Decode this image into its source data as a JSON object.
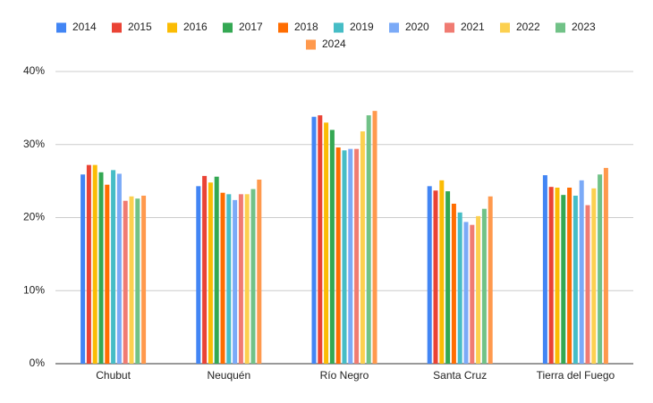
{
  "chart_data": {
    "type": "bar",
    "categories": [
      "Chubut",
      "Neuquén",
      "Río Negro",
      "Santa Cruz",
      "Tierra del Fuego"
    ],
    "series": [
      {
        "name": "2014",
        "color": "#4285f4",
        "values": [
          25.9,
          24.3,
          33.8,
          24.3,
          25.8
        ]
      },
      {
        "name": "2015",
        "color": "#ea4335",
        "values": [
          27.2,
          25.7,
          34.0,
          23.7,
          24.2
        ]
      },
      {
        "name": "2016",
        "color": "#fbbc04",
        "values": [
          27.2,
          24.8,
          33.0,
          25.1,
          24.1
        ]
      },
      {
        "name": "2017",
        "color": "#34a853",
        "values": [
          26.2,
          25.6,
          32.0,
          23.6,
          23.1
        ]
      },
      {
        "name": "2018",
        "color": "#ff6d01",
        "values": [
          24.5,
          23.4,
          29.6,
          21.9,
          24.1
        ]
      },
      {
        "name": "2019",
        "color": "#46bdc6",
        "values": [
          26.5,
          23.2,
          29.2,
          20.7,
          23.0
        ]
      },
      {
        "name": "2020",
        "color": "#7baaf7",
        "values": [
          26.0,
          22.4,
          29.4,
          19.4,
          25.1
        ]
      },
      {
        "name": "2021",
        "color": "#f07b72",
        "values": [
          22.3,
          23.2,
          29.4,
          19.0,
          21.7
        ]
      },
      {
        "name": "2022",
        "color": "#fcd04f",
        "values": [
          22.9,
          23.2,
          31.8,
          20.2,
          24.0
        ]
      },
      {
        "name": "2023",
        "color": "#71c287",
        "values": [
          22.6,
          23.9,
          34.0,
          21.2,
          25.9
        ]
      },
      {
        "name": "2024",
        "color": "#ff994d",
        "values": [
          23.0,
          25.2,
          34.6,
          22.9,
          26.8
        ]
      }
    ],
    "ylim": [
      0,
      40
    ],
    "yticks": [
      {
        "value": 0,
        "label": "0%"
      },
      {
        "value": 10,
        "label": "10%"
      },
      {
        "value": 20,
        "label": "20%"
      },
      {
        "value": 30,
        "label": "30%"
      },
      {
        "value": 40,
        "label": "40%"
      }
    ],
    "grid": true
  }
}
